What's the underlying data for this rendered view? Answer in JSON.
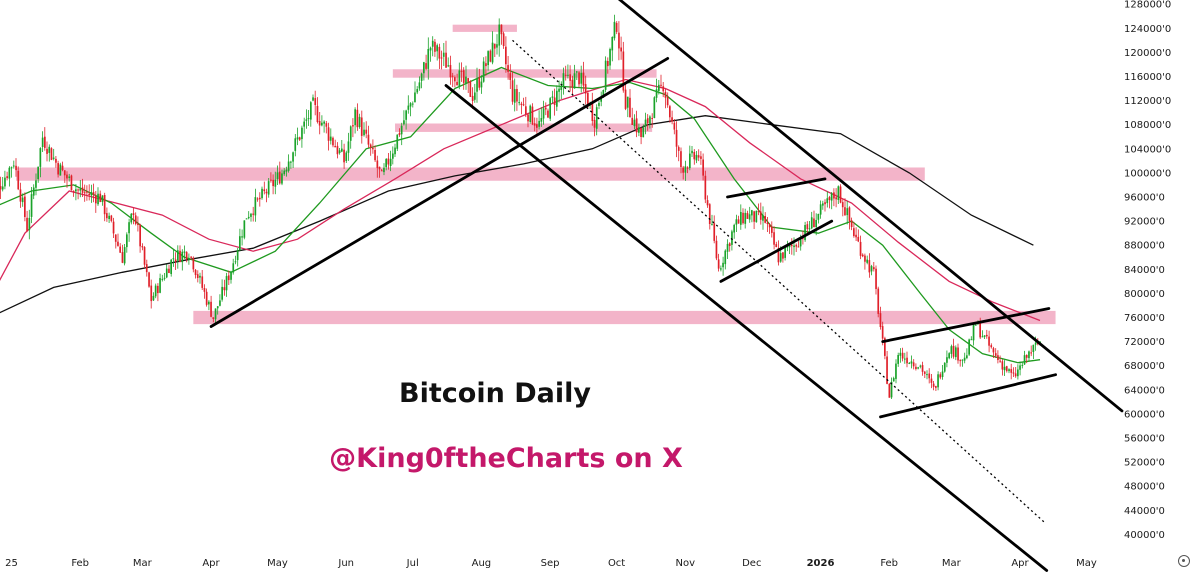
{
  "chart_data": {
    "type": "candlestick",
    "title": "Bitcoin Daily",
    "subtitle": "@King0ftheCharts on X",
    "x_ticks": [
      "25",
      "Feb",
      "Mar",
      "Apr",
      "May",
      "Jun",
      "Jul",
      "Aug",
      "Sep",
      "Oct",
      "Nov",
      "Dec",
      "2026",
      "Feb",
      "Mar",
      "Apr",
      "May"
    ],
    "y_ticks": [
      "128000'0",
      "124000'0",
      "120000'0",
      "116000'0",
      "112000'0",
      "108000'0",
      "104000'0",
      "100000'0",
      "96000'0",
      "92000'0",
      "88000'0",
      "84000'0",
      "80000'0",
      "76000'0",
      "72000'0",
      "68000'0",
      "64000'0",
      "60000'0",
      "56000'0",
      "52000'0",
      "48000'0",
      "44000'0",
      "40000'0"
    ],
    "ylim": [
      38000,
      130000
    ],
    "price_path": [
      [
        "2024-12-27",
        95000
      ],
      [
        "2025-01-07",
        102000
      ],
      [
        "2025-01-13",
        91000
      ],
      [
        "2025-01-20",
        106000
      ],
      [
        "2025-01-27",
        101000
      ],
      [
        "2025-02-05",
        97000
      ],
      [
        "2025-02-15",
        96000
      ],
      [
        "2025-02-25",
        86000
      ],
      [
        "2025-03-02",
        94000
      ],
      [
        "2025-03-10",
        79000
      ],
      [
        "2025-03-20",
        86000
      ],
      [
        "2025-03-27",
        87000
      ],
      [
        "2025-04-07",
        76000
      ],
      [
        "2025-04-15",
        84000
      ],
      [
        "2025-04-22",
        93000
      ],
      [
        "2025-05-08",
        100000
      ],
      [
        "2025-05-22",
        111000
      ],
      [
        "2025-06-05",
        102000
      ],
      [
        "2025-06-10",
        110000
      ],
      [
        "2025-06-22",
        99000
      ],
      [
        "2025-06-30",
        107000
      ],
      [
        "2025-07-10",
        116000
      ],
      [
        "2025-07-14",
        121000
      ],
      [
        "2025-07-22",
        118000
      ],
      [
        "2025-08-02",
        113000
      ],
      [
        "2025-08-14",
        123000
      ],
      [
        "2025-08-20",
        113000
      ],
      [
        "2025-09-01",
        108000
      ],
      [
        "2025-09-12",
        115000
      ],
      [
        "2025-09-19",
        116000
      ],
      [
        "2025-09-26",
        109000
      ],
      [
        "2025-10-06",
        125000
      ],
      [
        "2025-10-10",
        112000
      ],
      [
        "2025-10-17",
        106000
      ],
      [
        "2025-10-27",
        115000
      ],
      [
        "2025-11-04",
        101000
      ],
      [
        "2025-11-12",
        103000
      ],
      [
        "2025-11-21",
        84000
      ],
      [
        "2025-11-28",
        91000
      ],
      [
        "2025-12-03",
        93000
      ],
      [
        "2025-12-12",
        92000
      ],
      [
        "2025-12-18",
        86000
      ],
      [
        "2025-12-25",
        88000
      ],
      [
        "2026-01-05",
        93000
      ],
      [
        "2026-01-14",
        97000
      ],
      [
        "2026-01-22",
        89000
      ],
      [
        "2026-01-30",
        83000
      ],
      [
        "2026-02-06",
        63000
      ],
      [
        "2026-02-10",
        70000
      ],
      [
        "2026-02-20",
        68000
      ],
      [
        "2026-02-26",
        64000
      ],
      [
        "2026-03-05",
        71000
      ],
      [
        "2026-03-12",
        69000
      ],
      [
        "2026-03-17",
        75000
      ],
      [
        "2026-03-25",
        70000
      ],
      [
        "2026-04-03",
        66000
      ],
      [
        "2026-04-10",
        70000
      ],
      [
        "2026-04-15",
        72000
      ]
    ],
    "zones": [
      {
        "from": "2025-07-24",
        "to": "2025-08-22",
        "center": 124000,
        "half_height": 600
      },
      {
        "from": "2025-06-27",
        "to": "2025-10-24",
        "center": 116500,
        "half_height": 700
      },
      {
        "from": "2025-06-28",
        "to": "2025-10-22",
        "center": 107500,
        "half_height": 700
      },
      {
        "from": "2025-01-08",
        "to": "2026-02-22",
        "center": 99800,
        "half_height": 1100
      },
      {
        "from": "2025-03-29",
        "to": "2026-04-22",
        "center": 76000,
        "half_height": 1100
      }
    ],
    "trendlines": [
      {
        "from": [
          "2025-04-06",
          74500
        ],
        "to": [
          "2025-10-29",
          119000
        ],
        "style": "solid"
      },
      {
        "from": [
          "2025-07-21",
          114500
        ],
        "to": [
          "2026-04-18",
          34000
        ],
        "style": "solid"
      },
      {
        "from": [
          "2025-08-20",
          122000
        ],
        "to": [
          "2026-04-17",
          42000
        ],
        "style": "dotted"
      },
      {
        "from": [
          "2025-09-20",
          134000
        ],
        "to": [
          "2026-05-22",
          60500
        ],
        "style": "solid"
      },
      {
        "from": [
          "2025-11-25",
          96000
        ],
        "to": [
          "2026-01-08",
          99000
        ],
        "style": "solid"
      },
      {
        "from": [
          "2025-11-22",
          82000
        ],
        "to": [
          "2026-01-11",
          92000
        ],
        "style": "solid"
      },
      {
        "from": [
          "2026-02-03",
          72000
        ],
        "to": [
          "2026-04-19",
          77500
        ],
        "style": "solid"
      },
      {
        "from": [
          "2026-02-02",
          59500
        ],
        "to": [
          "2026-04-22",
          66500
        ],
        "style": "solid"
      }
    ],
    "ma_green": [
      [
        "2024-12-27",
        94000
      ],
      [
        "2025-01-15",
        97000
      ],
      [
        "2025-02-03",
        98000
      ],
      [
        "2025-02-20",
        95000
      ],
      [
        "2025-03-10",
        90000
      ],
      [
        "2025-03-25",
        86000
      ],
      [
        "2025-04-15",
        83500
      ],
      [
        "2025-05-05",
        87000
      ],
      [
        "2025-05-25",
        95000
      ],
      [
        "2025-06-15",
        104000
      ],
      [
        "2025-07-05",
        106000
      ],
      [
        "2025-07-25",
        114000
      ],
      [
        "2025-08-15",
        117500
      ],
      [
        "2025-09-05",
        114500
      ],
      [
        "2025-09-25",
        114000
      ],
      [
        "2025-10-12",
        115000
      ],
      [
        "2025-10-28",
        113000
      ],
      [
        "2025-11-10",
        109000
      ],
      [
        "2025-11-28",
        99000
      ],
      [
        "2025-12-15",
        91000
      ],
      [
        "2026-01-05",
        90000
      ],
      [
        "2026-01-20",
        92000
      ],
      [
        "2026-02-03",
        88000
      ],
      [
        "2026-02-20",
        80000
      ],
      [
        "2026-03-05",
        74000
      ],
      [
        "2026-03-20",
        70000
      ],
      [
        "2026-04-05",
        68500
      ],
      [
        "2026-04-15",
        69000
      ]
    ],
    "ma_red": [
      [
        "2024-12-27",
        79000
      ],
      [
        "2025-01-12",
        90000
      ],
      [
        "2025-02-01",
        97000
      ],
      [
        "2025-02-22",
        95000
      ],
      [
        "2025-03-15",
        93000
      ],
      [
        "2025-04-05",
        89000
      ],
      [
        "2025-04-25",
        87000
      ],
      [
        "2025-05-15",
        89000
      ],
      [
        "2025-06-05",
        94000
      ],
      [
        "2025-06-28",
        99000
      ],
      [
        "2025-07-20",
        104000
      ],
      [
        "2025-08-15",
        108000
      ],
      [
        "2025-09-10",
        112000
      ],
      [
        "2025-10-10",
        115500
      ],
      [
        "2025-10-28",
        114000
      ],
      [
        "2025-11-15",
        111000
      ],
      [
        "2025-12-05",
        105000
      ],
      [
        "2025-12-28",
        99000
      ],
      [
        "2026-01-20",
        95000
      ],
      [
        "2026-02-10",
        88500
      ],
      [
        "2026-03-05",
        82000
      ],
      [
        "2026-03-25",
        78500
      ],
      [
        "2026-04-15",
        75500
      ]
    ],
    "ma_black": [
      [
        "2024-12-27",
        76000
      ],
      [
        "2025-01-25",
        81000
      ],
      [
        "2025-02-25",
        83500
      ],
      [
        "2025-03-25",
        85500
      ],
      [
        "2025-04-25",
        87500
      ],
      [
        "2025-05-25",
        92000
      ],
      [
        "2025-06-25",
        97000
      ],
      [
        "2025-07-25",
        99500
      ],
      [
        "2025-08-25",
        101500
      ],
      [
        "2025-09-25",
        104000
      ],
      [
        "2025-10-20",
        108000
      ],
      [
        "2025-11-15",
        109500
      ],
      [
        "2025-12-15",
        108000
      ],
      [
        "2026-01-15",
        106500
      ],
      [
        "2026-02-15",
        100000
      ],
      [
        "2026-03-15",
        93000
      ],
      [
        "2026-04-12",
        88000
      ]
    ],
    "colors": {
      "up": "#1aa32a",
      "down": "#e0202a",
      "zone": "#f3b4c9",
      "ma_green": "#1f9a1f",
      "ma_red": "#d9285a",
      "ma_black": "#111111",
      "handle": "#c4186a"
    },
    "grid": false,
    "legend": "none"
  }
}
